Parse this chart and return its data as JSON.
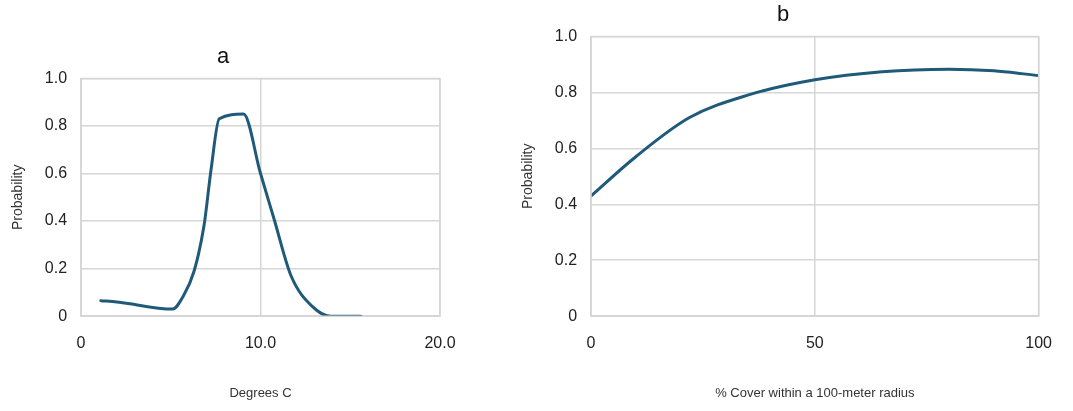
{
  "chart_data": [
    {
      "type": "line",
      "title": "a",
      "xlabel": "Degrees C",
      "ylabel": "Probability",
      "series": [
        {
          "color": "#1f5a78",
          "x": [
            1.1,
            2,
            5.1,
            5.7,
            6.3,
            6.85,
            7.25,
            7.7,
            9.05,
            10,
            10.75,
            11.7,
            12.9,
            13.9,
            15.6
          ],
          "values": [
            0.065,
            0.06,
            0.03,
            0.085,
            0.19,
            0.38,
            0.62,
            0.83,
            0.85,
            0.6,
            0.41,
            0.17,
            0.04,
            0.0,
            0.0
          ]
        }
      ],
      "xlim": [
        0,
        20
      ],
      "xticks": [
        0,
        {
          "value": 10,
          "label": "10.0"
        },
        {
          "value": 20,
          "label": "20.0"
        }
      ],
      "ylim": [
        0,
        1
      ],
      "yticks": [
        0,
        0.2,
        0.4,
        0.6,
        0.8,
        {
          "value": 1,
          "label": "1.0"
        }
      ],
      "grid": true,
      "legend": false,
      "marker": "none",
      "line_style": "solid"
    },
    {
      "type": "line",
      "title": "b",
      "xlabel": "% Cover within a 100-meter radius",
      "ylabel": "Probability",
      "series": [
        {
          "color": "#1f5a78",
          "x": [
            0,
            10,
            22,
            35,
            50,
            65,
            80,
            90,
            100
          ],
          "values": [
            0.43,
            0.57,
            0.71,
            0.79,
            0.845,
            0.874,
            0.883,
            0.877,
            0.86
          ]
        }
      ],
      "xlim": [
        0,
        100
      ],
      "xticks": [
        0,
        50,
        100
      ],
      "ylim": [
        0,
        1
      ],
      "yticks": [
        0,
        0.2,
        0.4,
        0.6,
        0.8,
        {
          "value": 1,
          "label": "1.0"
        }
      ],
      "grid": true,
      "legend": false,
      "marker": "none",
      "line_style": "solid"
    }
  ]
}
